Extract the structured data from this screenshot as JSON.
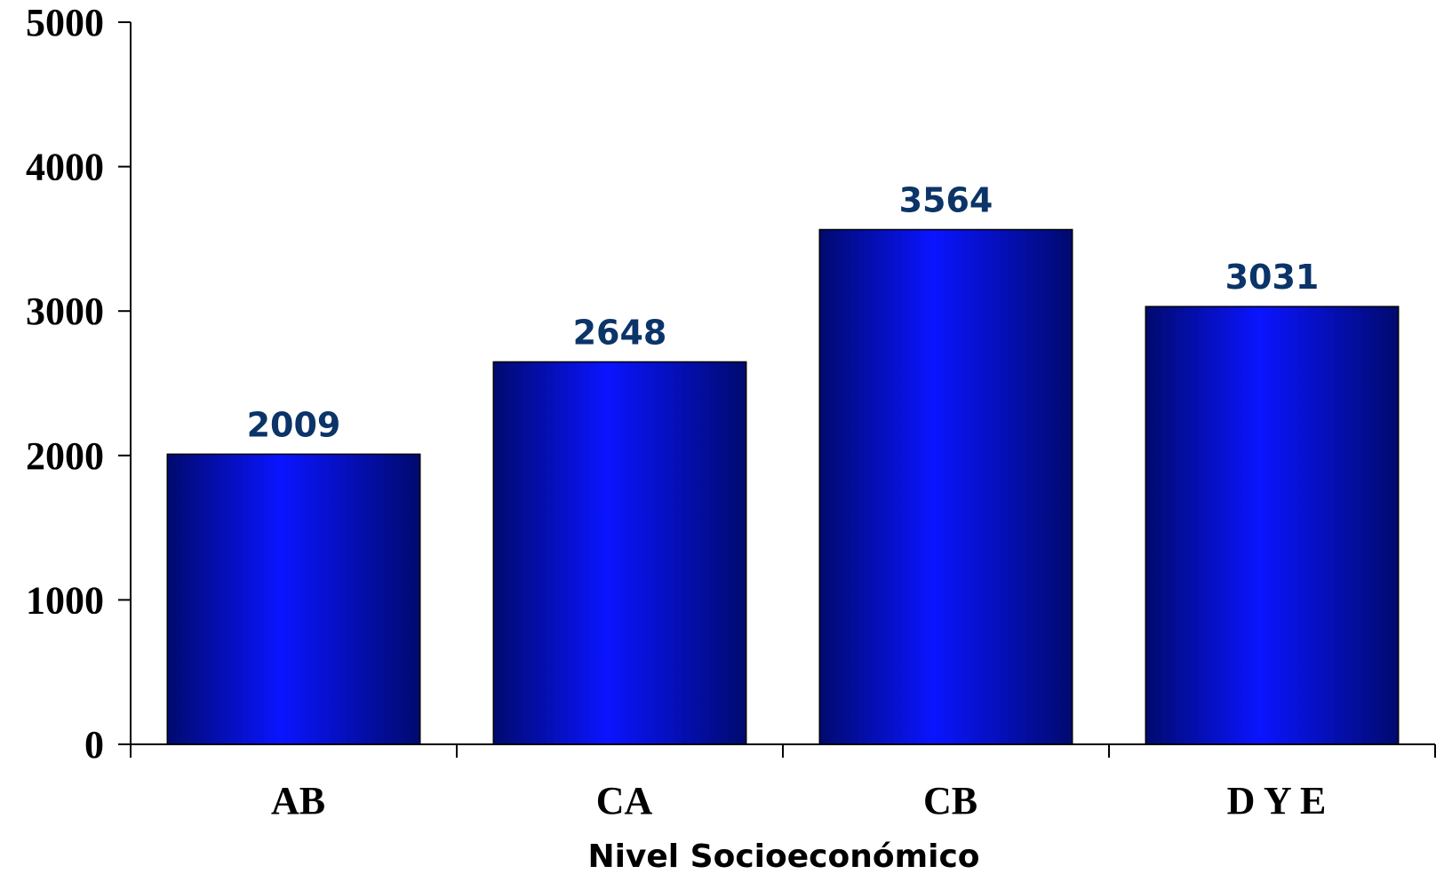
{
  "chart_data": {
    "type": "bar",
    "categories": [
      "AB",
      "CA",
      "CB",
      "D Y E"
    ],
    "values": [
      2009,
      2648,
      3564,
      3031
    ],
    "data_labels": [
      "2009",
      "2648",
      "3564",
      "3031"
    ],
    "title": "",
    "xlabel": "Nivel Socioeconómico",
    "ylabel": "",
    "ylim": [
      0,
      5000
    ],
    "yticks": [
      0,
      1000,
      2000,
      3000,
      4000,
      5000
    ],
    "ytick_labels": [
      "0",
      "1000",
      "2000",
      "3000",
      "4000",
      "5000"
    ],
    "grid": false,
    "legend": "none",
    "colors": {
      "bar_center": "#0a14ff",
      "bar_edge": "#000a6e",
      "data_label": "#0b3468",
      "axis": "#000000"
    }
  }
}
